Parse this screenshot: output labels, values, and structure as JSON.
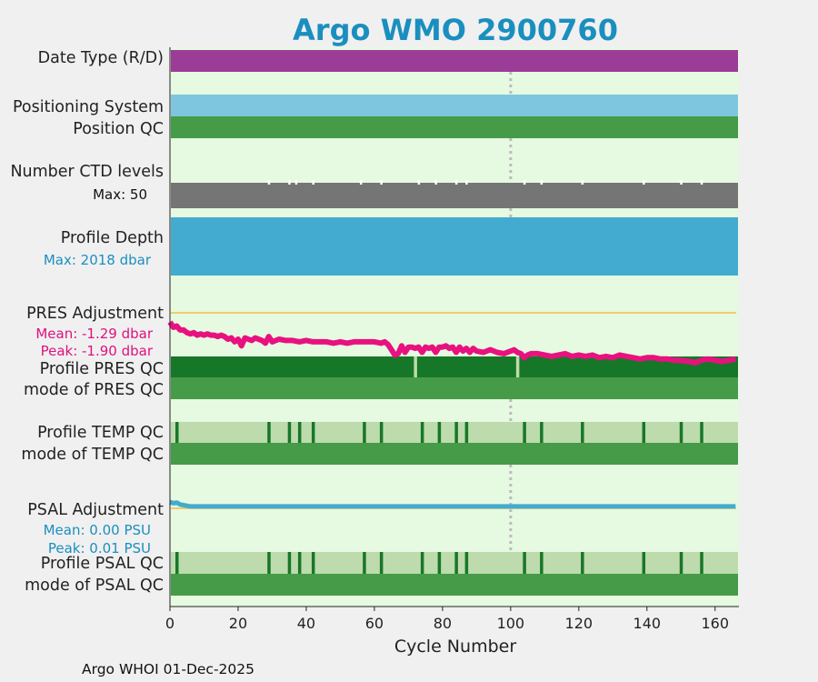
{
  "chart_data": {
    "type": "timeline",
    "title": "Argo WMO 2900760",
    "xlabel": "Cycle Number",
    "xlim": [
      0,
      167
    ],
    "x_ticks": [
      0,
      20,
      40,
      60,
      80,
      100,
      120,
      140,
      160
    ],
    "reference_cycle": 100,
    "footer": "Argo WHOI 01-Dec-2025",
    "colors": {
      "panel_background": "#e6f9e1",
      "date_type": "#9b3c97",
      "positioning_system": "#7ec6df",
      "qc_good": "#469b48",
      "qc_dark": "#177728",
      "qc_light": "#bddbad",
      "ctd_levels": "#757575",
      "profile_depth": "#43abcf",
      "pres_adjustment": "#e8117f",
      "psal_adjustment": "#43abcf",
      "zero_line": "#f0c040",
      "reference_line": "#bbbbbb",
      "title": "#1a8fbf"
    },
    "rows": {
      "date_type": {
        "label": "Date Type (R/D)"
      },
      "positioning_system": {
        "label": "Positioning System"
      },
      "position_qc": {
        "label": "Position QC"
      },
      "ctd_levels": {
        "label": "Number CTD levels",
        "max_label": "Max: 50",
        "gap_cycles": [
          29,
          35,
          37,
          42,
          56,
          62,
          73,
          78,
          84,
          87,
          104,
          109,
          121,
          139,
          150,
          156
        ]
      },
      "profile_depth": {
        "label": "Profile Depth",
        "max_label": "Max: 2018 dbar"
      },
      "pres_adjustment": {
        "label": "PRES Adjustment",
        "mean_label": "Mean: -1.29 dbar",
        "peak_label": "Peak: -1.90 dbar",
        "x": [
          0,
          1,
          2,
          3,
          4,
          5,
          6,
          7,
          8,
          9,
          10,
          11,
          12,
          13,
          14,
          15,
          16,
          17,
          18,
          19,
          20,
          21,
          22,
          23,
          24,
          25,
          26,
          27,
          28,
          29,
          30,
          32,
          34,
          36,
          38,
          40,
          42,
          44,
          46,
          48,
          50,
          52,
          54,
          56,
          58,
          60,
          62,
          63,
          64,
          65,
          66,
          67,
          68,
          69,
          70,
          71,
          72,
          73,
          74,
          75,
          76,
          77,
          78,
          79,
          80,
          81,
          82,
          83,
          84,
          85,
          86,
          87,
          88,
          89,
          90,
          92,
          94,
          96,
          98,
          100,
          101,
          102,
          103,
          104,
          105,
          106,
          108,
          110,
          112,
          114,
          116,
          118,
          120,
          122,
          124,
          126,
          128,
          130,
          132,
          134,
          136,
          138,
          140,
          142,
          144,
          146,
          148,
          150,
          152,
          153,
          154,
          156,
          158,
          160,
          162,
          164,
          166
        ],
        "y": [
          -0.35,
          -0.55,
          -0.5,
          -0.65,
          -0.65,
          -0.75,
          -0.8,
          -0.75,
          -0.85,
          -0.8,
          -0.85,
          -0.8,
          -0.85,
          -0.85,
          -0.9,
          -0.85,
          -0.9,
          -1.0,
          -0.95,
          -1.1,
          -1.0,
          -1.25,
          -0.95,
          -1.0,
          -1.05,
          -0.95,
          -1.0,
          -1.05,
          -1.15,
          -0.9,
          -1.1,
          -1.0,
          -1.05,
          -1.05,
          -1.1,
          -1.05,
          -1.1,
          -1.1,
          -1.1,
          -1.15,
          -1.1,
          -1.15,
          -1.1,
          -1.1,
          -1.1,
          -1.1,
          -1.15,
          -1.1,
          -1.2,
          -1.4,
          -1.6,
          -1.55,
          -1.25,
          -1.5,
          -1.3,
          -1.3,
          -1.35,
          -1.3,
          -1.5,
          -1.3,
          -1.35,
          -1.3,
          -1.5,
          -1.3,
          -1.3,
          -1.25,
          -1.35,
          -1.3,
          -1.5,
          -1.3,
          -1.45,
          -1.35,
          -1.5,
          -1.35,
          -1.45,
          -1.5,
          -1.4,
          -1.5,
          -1.55,
          -1.45,
          -1.4,
          -1.5,
          -1.55,
          -1.7,
          -1.6,
          -1.55,
          -1.55,
          -1.6,
          -1.65,
          -1.6,
          -1.55,
          -1.65,
          -1.6,
          -1.65,
          -1.6,
          -1.7,
          -1.65,
          -1.7,
          -1.6,
          -1.65,
          -1.7,
          -1.75,
          -1.7,
          -1.7,
          -1.75,
          -1.75,
          -1.8,
          -1.8,
          -1.85,
          -1.85,
          -1.9,
          -1.8,
          -1.75,
          -1.8,
          -1.85,
          -1.8,
          -1.75
        ],
        "ylim": [
          -2.2,
          0.3
        ]
      },
      "profile_pres_qc": {
        "label": "Profile PRES QC",
        "gap_cycles": [
          72,
          102
        ]
      },
      "mode_pres_qc": {
        "label": "mode of PRES QC"
      },
      "profile_temp_qc": {
        "label": "Profile TEMP QC",
        "marker_cycles": [
          2,
          29,
          35,
          38,
          42,
          57,
          62,
          74,
          79,
          84,
          87,
          104,
          109,
          121,
          139,
          150,
          156
        ]
      },
      "mode_temp_qc": {
        "label": "mode of TEMP QC"
      },
      "psal_adjustment": {
        "label": "PSAL Adjustment",
        "mean_label": "Mean: 0.00 PSU",
        "peak_label": "Peak: 0.01 PSU",
        "x": [
          0,
          1,
          2,
          3,
          4,
          5,
          6,
          8,
          10,
          15,
          20,
          30,
          40,
          60,
          80,
          100,
          120,
          140,
          160,
          166
        ],
        "y": [
          0.01,
          0.008,
          0.009,
          0.006,
          0.005,
          0.004,
          0.003,
          0.003,
          0.003,
          0.003,
          0.003,
          0.003,
          0.003,
          0.003,
          0.003,
          0.003,
          0.003,
          0.003,
          0.003,
          0.003
        ],
        "ylim": [
          -0.025,
          0.025
        ]
      },
      "profile_psal_qc": {
        "label": "Profile PSAL QC",
        "marker_cycles": [
          2,
          29,
          35,
          38,
          42,
          57,
          62,
          74,
          79,
          84,
          87,
          104,
          109,
          121,
          139,
          150,
          156
        ]
      },
      "mode_psal_qc": {
        "label": "mode of PSAL QC"
      }
    }
  }
}
